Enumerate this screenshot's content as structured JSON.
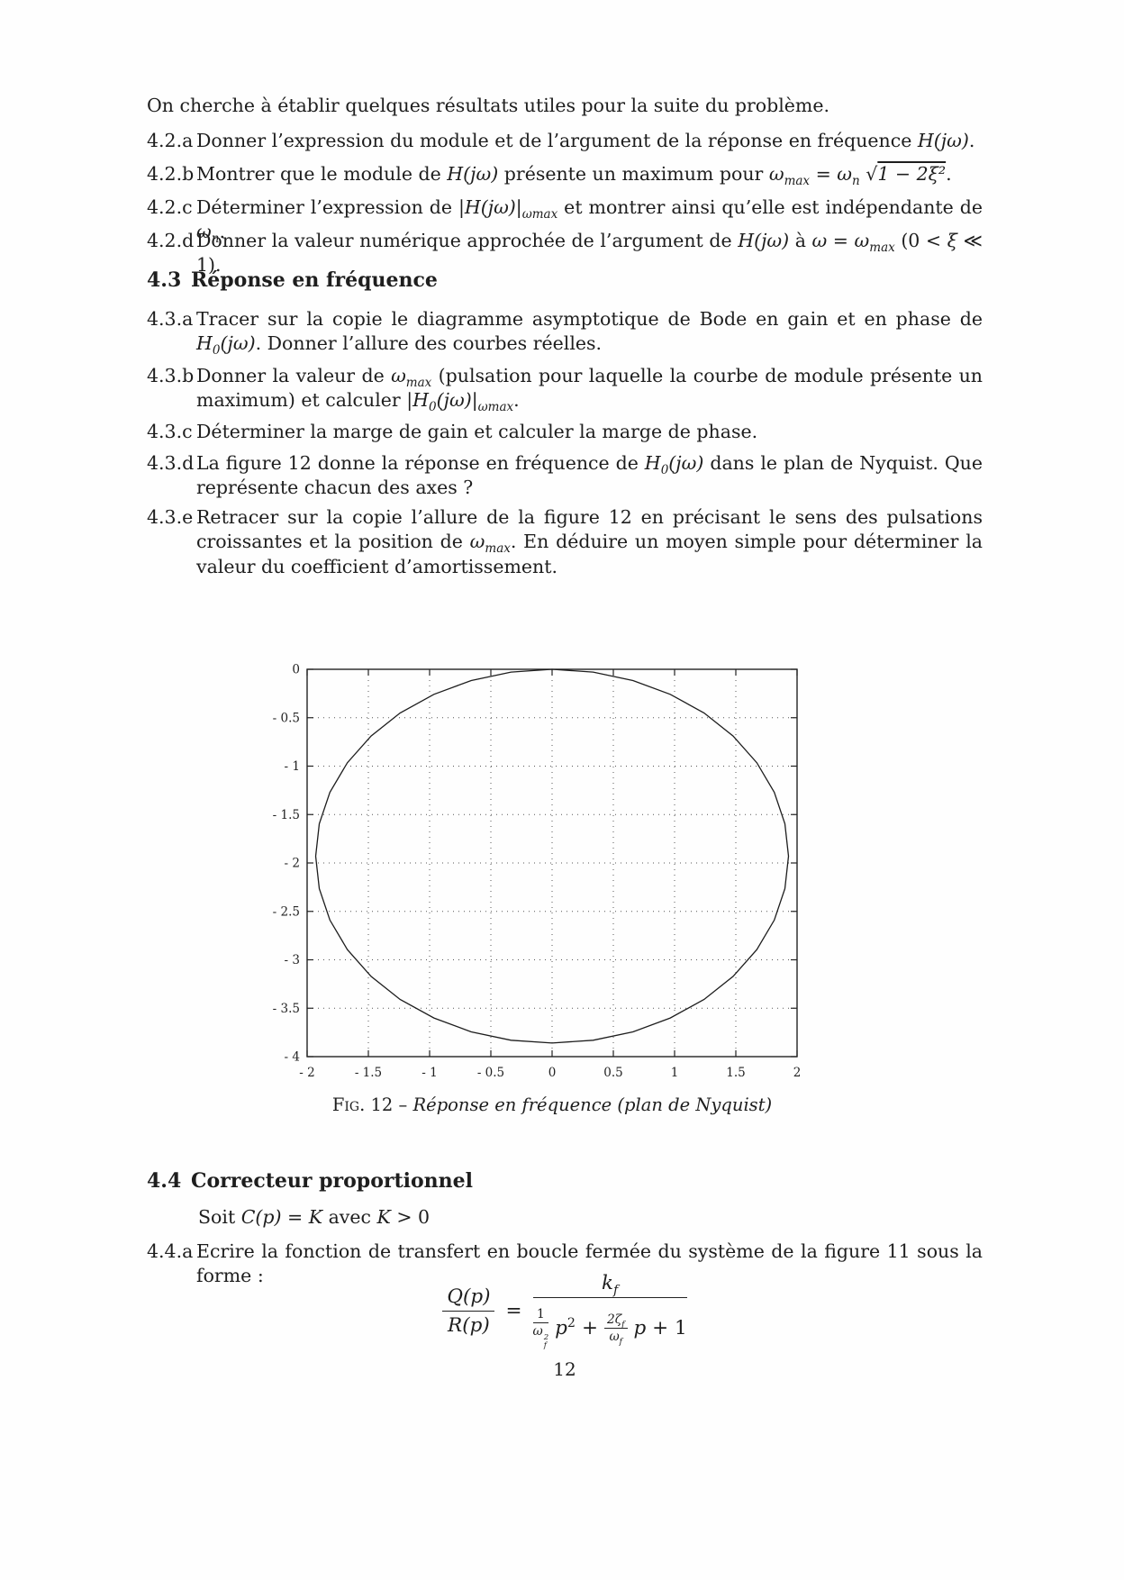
{
  "intro": {
    "text": [
      "On cherche à établir quelques résultats utiles pour la suite du problème."
    ]
  },
  "questions_42": [
    {
      "label": "4.2.a",
      "text": [
        "Donner l’expression du module et de l’argument de la réponse en fréquence ",
        {
          "i": "H(jω)"
        },
        "."
      ]
    },
    {
      "label": "4.2.b",
      "text": [
        "Montrer que le module de ",
        {
          "i": "H(jω)"
        },
        " présente un maximum pour ",
        {
          "i": "ω"
        },
        {
          "sub": "max"
        },
        " = ",
        {
          "i": "ω"
        },
        {
          "sub": "n"
        },
        " √",
        {
          "ol": "1 − 2ξ²"
        },
        "."
      ]
    },
    {
      "label": "4.2.c",
      "text": [
        "Déterminer l’expression de ",
        {
          "i": "|H(jω)|"
        },
        {
          "sub": "ωmax"
        },
        " et montrer ainsi qu’elle est indépendante de ",
        {
          "i": "ω"
        },
        {
          "sub": "n"
        },
        "."
      ]
    },
    {
      "label": "4.2.d",
      "text": [
        "Donner la valeur numérique approchée de l’argument de ",
        {
          "i": "H(jω)"
        },
        " à ",
        {
          "i": "ω"
        },
        " = ",
        {
          "i": "ω"
        },
        {
          "sub": "max"
        },
        " (0 < ",
        {
          "i": "ξ"
        },
        " ≪ 1)."
      ]
    }
  ],
  "section_43": {
    "number": "4.3",
    "title": "Réponse en fréquence"
  },
  "questions_43": [
    {
      "label": "4.3.a",
      "text": [
        "Tracer sur la copie le diagramme asymptotique de Bode en gain et en phase de ",
        {
          "i": "H"
        },
        {
          "sub": "0"
        },
        {
          "i": "(jω)"
        },
        ". Donner l’allure des courbes réelles."
      ]
    },
    {
      "label": "4.3.b",
      "text": [
        "Donner la valeur de ",
        {
          "i": "ω"
        },
        {
          "sub": "max"
        },
        " (pulsation pour laquelle la courbe de module présente un maximum) et calculer ",
        {
          "i": "|H"
        },
        {
          "sub": "0"
        },
        {
          "i": "(jω)|"
        },
        {
          "sub": "ωmax"
        },
        "."
      ]
    },
    {
      "label": "4.3.c",
      "text": [
        "Déterminer la marge de gain et calculer la marge de phase."
      ]
    },
    {
      "label": "4.3.d",
      "text": [
        "La figure 12 donne la réponse en fréquence de ",
        {
          "i": "H"
        },
        {
          "sub": "0"
        },
        {
          "i": "(jω)"
        },
        " dans le plan de Nyquist. Que représente chacun des axes ?"
      ]
    },
    {
      "label": "4.3.e",
      "text": [
        "Retracer sur la copie l’allure de la figure 12 en précisant le sens des pulsations croissantes et la position de ",
        {
          "i": "ω"
        },
        {
          "sub": "max"
        },
        ". En déduire un moyen simple pour déterminer la valeur du coefficient d’amortissement."
      ]
    }
  ],
  "figure": {
    "caption_label": "Fig.",
    "caption_mid": " 12 – ",
    "caption_title": "Réponse en fréquence (plan de Nyquist)"
  },
  "chart_data": {
    "type": "line",
    "description": "Nyquist plot of H0(jω): closed near-circular contour passing through the origin, centre (0, -1.93), radius 1.93",
    "xlim": [
      -2,
      2
    ],
    "ylim": [
      -4,
      0
    ],
    "xticks": [
      -2,
      -1.5,
      -1,
      -0.5,
      0,
      0.5,
      1,
      1.5,
      2
    ],
    "xtick_labels": [
      "- 2",
      "- 1.5",
      "- 1",
      "- 0.5",
      "0",
      "0.5",
      "1",
      "1.5",
      "2"
    ],
    "yticks": [
      0,
      -0.5,
      -1,
      -1.5,
      -2,
      -2.5,
      -3,
      -3.5,
      -4
    ],
    "ytick_labels": [
      "0",
      "- 0.5",
      "- 1",
      "- 1.5",
      "- 2",
      "- 2.5",
      "- 3",
      "- 3.5",
      "- 4"
    ],
    "grid": "dotted",
    "ink": "#222222",
    "series": [
      {
        "name": "H0(jω)",
        "points": [
          [
            0,
            0
          ],
          [
            0.335,
            -0.029
          ],
          [
            0.66,
            -0.116
          ],
          [
            0.965,
            -0.259
          ],
          [
            1.241,
            -0.451
          ],
          [
            1.478,
            -0.689
          ],
          [
            1.671,
            -0.965
          ],
          [
            1.814,
            -1.27
          ],
          [
            1.901,
            -1.595
          ],
          [
            1.93,
            -1.93
          ],
          [
            1.901,
            -2.265
          ],
          [
            1.814,
            -2.59
          ],
          [
            1.671,
            -2.895
          ],
          [
            1.478,
            -3.171
          ],
          [
            1.241,
            -3.409
          ],
          [
            0.965,
            -3.601
          ],
          [
            0.66,
            -3.744
          ],
          [
            0.335,
            -3.831
          ],
          [
            0,
            -3.86
          ],
          [
            -0.335,
            -3.831
          ],
          [
            -0.66,
            -3.744
          ],
          [
            -0.965,
            -3.601
          ],
          [
            -1.241,
            -3.409
          ],
          [
            -1.478,
            -3.171
          ],
          [
            -1.671,
            -2.895
          ],
          [
            -1.814,
            -2.59
          ],
          [
            -1.901,
            -2.265
          ],
          [
            -1.93,
            -1.93
          ],
          [
            -1.901,
            -1.595
          ],
          [
            -1.814,
            -1.27
          ],
          [
            -1.671,
            -0.965
          ],
          [
            -1.478,
            -0.689
          ],
          [
            -1.241,
            -0.451
          ],
          [
            -0.965,
            -0.259
          ],
          [
            -0.66,
            -0.116
          ],
          [
            -0.335,
            -0.029
          ],
          [
            0,
            0
          ]
        ]
      }
    ]
  },
  "section_44": {
    "number": "4.4",
    "title": "Correcteur proportionnel"
  },
  "soit": {
    "text": [
      "Soit ",
      {
        "i": "C(p)"
      },
      " = ",
      {
        "i": "K"
      },
      " avec ",
      {
        "i": "K"
      },
      " > 0"
    ]
  },
  "question_44a": {
    "label": "4.4.a",
    "text": [
      "Ecrire la fonction de transfert en boucle fermée du système de la figure 11 sous la forme :"
    ]
  },
  "formula": {
    "lhs_num": "Q(p)",
    "lhs_den": "R(p)",
    "equals": "=",
    "num_base": "k",
    "num_sub": "f",
    "f1_num": "1",
    "f1_den_base": "ω",
    "f1_den_sup": "2",
    "f1_den_sub": "f",
    "mid_p": "p",
    "mid_sup": "2",
    "mid_plus": "+",
    "f2_num_base": "2ζ",
    "f2_num_sub": "f",
    "f2_den_base": "ω",
    "f2_den_sub": "f",
    "tail_p": "p",
    "tail_rest": " + 1"
  },
  "page_number": "12"
}
